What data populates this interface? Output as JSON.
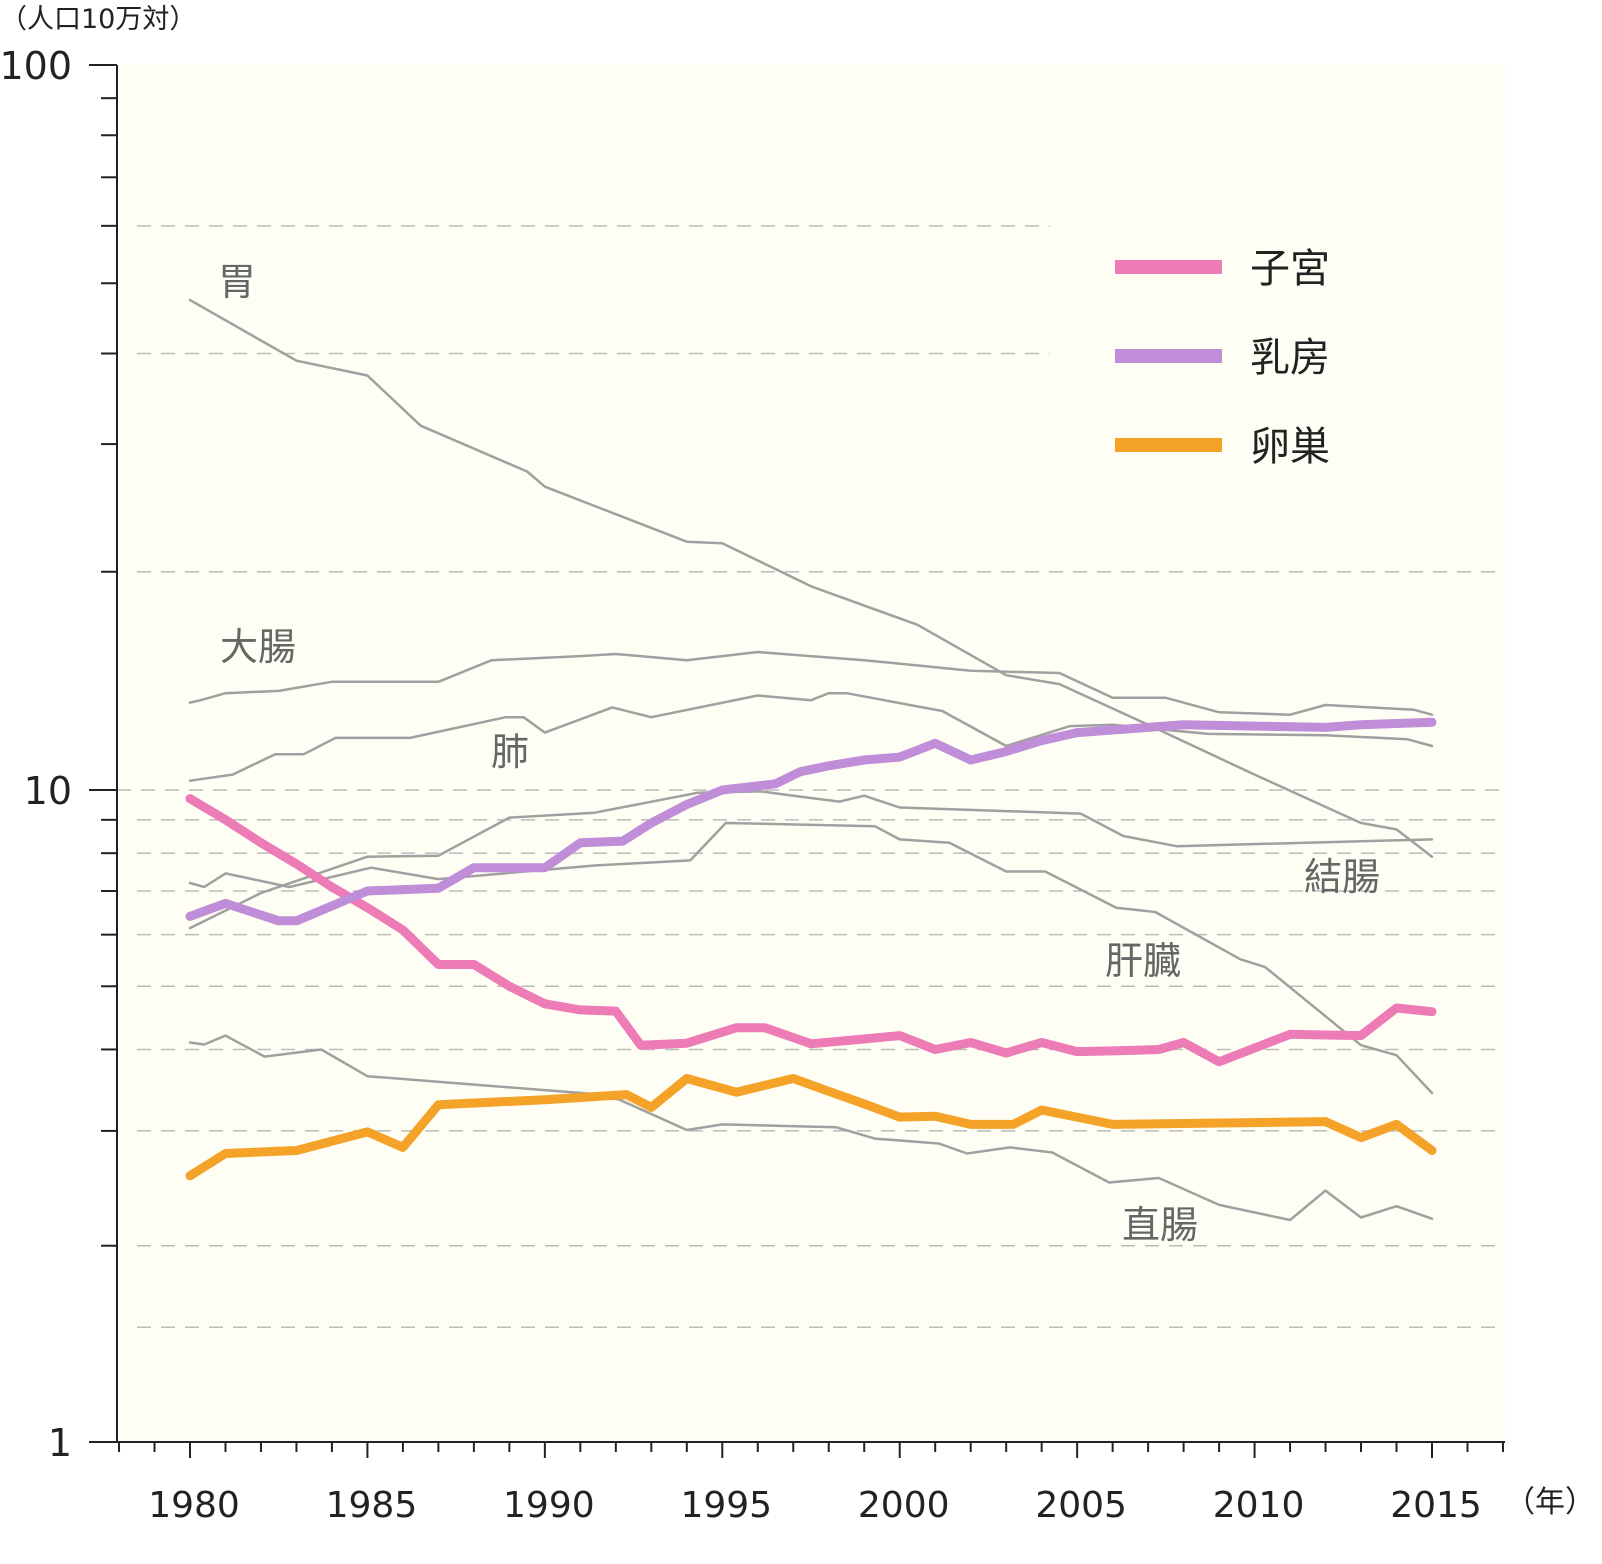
{
  "chart_data": {
    "type": "line",
    "y_scale": "log",
    "ylim": [
      1,
      100
    ],
    "xlim": [
      1978,
      2019
    ],
    "y_unit_label": "（人口10万対）",
    "x_unit_label": "（年）",
    "y_tick_labels": [
      "100",
      "10",
      "1"
    ],
    "y_ticks": [
      100,
      10,
      1
    ],
    "x_tick_labels": [
      "1980",
      "1985",
      "1990",
      "1995",
      "2000",
      "2005",
      "2010",
      "2015"
    ],
    "x_ticks": [
      1980,
      1985,
      1990,
      1995,
      2000,
      2005,
      2010,
      2015
    ],
    "grid": true,
    "grid_values": [
      1.5,
      2,
      3,
      4,
      5,
      6,
      7,
      8,
      9,
      20,
      40,
      60
    ],
    "background": "#fffef5",
    "legend": {
      "placement": "top-right",
      "entries": [
        "子宮",
        "乳房",
        "卵巣"
      ]
    },
    "series": [
      {
        "name": "子宮",
        "color": "#ec7bb6",
        "highlight": true,
        "points": [
          [
            1980,
            9.7
          ],
          [
            1981,
            9.0
          ],
          [
            1982,
            8.3
          ],
          [
            1983,
            7.7
          ],
          [
            1984,
            7.1
          ],
          [
            1985,
            6.6
          ],
          [
            1986,
            6.1
          ],
          [
            1987,
            5.4
          ],
          [
            1988,
            5.4
          ],
          [
            1989,
            5.0
          ],
          [
            1990,
            4.7
          ],
          [
            1991,
            4.6
          ],
          [
            1992,
            4.58
          ],
          [
            1992.7,
            4.06
          ],
          [
            1994,
            4.09
          ],
          [
            1995.4,
            4.32
          ],
          [
            1996.2,
            4.32
          ],
          [
            1997.5,
            4.08
          ],
          [
            1999,
            4.15
          ],
          [
            2000,
            4.2
          ],
          [
            2001,
            4.0
          ],
          [
            2002,
            4.1
          ],
          [
            2003,
            3.95
          ],
          [
            2004,
            4.1
          ],
          [
            2005,
            3.97
          ],
          [
            2006,
            3.98
          ],
          [
            2007.3,
            4.0
          ],
          [
            2008,
            4.1
          ],
          [
            2009,
            3.83
          ],
          [
            2011,
            4.22
          ],
          [
            2012,
            4.21
          ],
          [
            2013,
            4.2
          ],
          [
            2014,
            4.63
          ],
          [
            2015,
            4.57
          ]
        ]
      },
      {
        "name": "乳房",
        "color": "#c08ed8",
        "highlight": true,
        "points": [
          [
            1980,
            6.4
          ],
          [
            1981,
            6.7
          ],
          [
            1982.5,
            6.3
          ],
          [
            1983,
            6.3
          ],
          [
            1985,
            7.0
          ],
          [
            1987,
            7.07
          ],
          [
            1988,
            7.6
          ],
          [
            1990,
            7.6
          ],
          [
            1991,
            8.3
          ],
          [
            1992.2,
            8.35
          ],
          [
            1993,
            8.9
          ],
          [
            1994,
            9.5
          ],
          [
            1995,
            10.0
          ],
          [
            1996.5,
            10.2
          ],
          [
            1997.2,
            10.6
          ],
          [
            1998,
            10.8
          ],
          [
            1999,
            11.0
          ],
          [
            2000,
            11.1
          ],
          [
            2001,
            11.6
          ],
          [
            2002,
            11.0
          ],
          [
            2003,
            11.3
          ],
          [
            2004,
            11.7
          ],
          [
            2005,
            12.0
          ],
          [
            2007,
            12.2
          ],
          [
            2008,
            12.3
          ],
          [
            2010,
            12.25
          ],
          [
            2012,
            12.2
          ],
          [
            2013,
            12.3
          ],
          [
            2014,
            12.35
          ],
          [
            2015,
            12.4
          ]
        ]
      },
      {
        "name": "卵巣",
        "color": "#f4a228",
        "highlight": true,
        "points": [
          [
            1980,
            2.56
          ],
          [
            1981,
            2.77
          ],
          [
            1983,
            2.8
          ],
          [
            1985,
            2.99
          ],
          [
            1986,
            2.83
          ],
          [
            1987,
            3.29
          ],
          [
            1990,
            3.35
          ],
          [
            1992.3,
            3.41
          ],
          [
            1993,
            3.26
          ],
          [
            1994,
            3.61
          ],
          [
            1995.4,
            3.44
          ],
          [
            1997,
            3.61
          ],
          [
            1998,
            3.45
          ],
          [
            1999,
            3.3
          ],
          [
            2000,
            3.15
          ],
          [
            2001,
            3.16
          ],
          [
            2002,
            3.07
          ],
          [
            2003.2,
            3.07
          ],
          [
            2004,
            3.23
          ],
          [
            2006,
            3.07
          ],
          [
            2012,
            3.1
          ],
          [
            2013,
            2.93
          ],
          [
            2014,
            3.07
          ],
          [
            2015,
            2.8
          ]
        ]
      },
      {
        "name": "胃",
        "color": "#a0a0a0",
        "points": [
          [
            1980,
            47.4
          ],
          [
            1983,
            39.1
          ],
          [
            1985,
            37.3
          ],
          [
            1986.5,
            31.8
          ],
          [
            1989.5,
            27.5
          ],
          [
            1990,
            26.2
          ],
          [
            1994,
            22.0
          ],
          [
            1995,
            21.9
          ],
          [
            1997.5,
            19.1
          ],
          [
            2000.5,
            16.9
          ],
          [
            2003,
            14.4
          ],
          [
            2004.5,
            14.0
          ],
          [
            2007,
            12.3
          ],
          [
            2010,
            10.5
          ],
          [
            2013,
            8.9
          ],
          [
            2014,
            8.7
          ],
          [
            2015,
            7.9
          ]
        ]
      },
      {
        "name": "大腸",
        "color": "#a0a0a0",
        "points": [
          [
            1980,
            13.2
          ],
          [
            1980.3,
            13.3
          ],
          [
            1981,
            13.6
          ],
          [
            1982.5,
            13.7
          ],
          [
            1984,
            14.1
          ],
          [
            1987,
            14.1
          ],
          [
            1988.5,
            15.1
          ],
          [
            1991,
            15.3
          ],
          [
            1992,
            15.4
          ],
          [
            1994,
            15.1
          ],
          [
            1996,
            15.5
          ],
          [
            1999,
            15.1
          ],
          [
            2002,
            14.6
          ],
          [
            2004.5,
            14.5
          ],
          [
            2006,
            13.4
          ],
          [
            2007.5,
            13.4
          ],
          [
            2009,
            12.8
          ],
          [
            2011,
            12.7
          ],
          [
            2012,
            13.1
          ],
          [
            2014.5,
            12.9
          ],
          [
            2015,
            12.7
          ]
        ]
      },
      {
        "name": "肺",
        "color": "#a0a0a0",
        "points": [
          [
            1980,
            10.3
          ],
          [
            1981.2,
            10.5
          ],
          [
            1982.4,
            11.2
          ],
          [
            1983.2,
            11.2
          ],
          [
            1984.1,
            11.8
          ],
          [
            1986.2,
            11.8
          ],
          [
            1988.9,
            12.6
          ],
          [
            1989.4,
            12.6
          ],
          [
            1990,
            12.0
          ],
          [
            1991.9,
            13.0
          ],
          [
            1993,
            12.6
          ],
          [
            1996,
            13.5
          ],
          [
            1997.5,
            13.3
          ],
          [
            1998,
            13.6
          ],
          [
            1998.5,
            13.6
          ],
          [
            2001.2,
            12.85
          ],
          [
            2003,
            11.5
          ],
          [
            2004.8,
            12.25
          ],
          [
            2006,
            12.3
          ],
          [
            2008.7,
            11.95
          ],
          [
            2012,
            11.9
          ],
          [
            2014.3,
            11.75
          ],
          [
            2015,
            11.5
          ]
        ]
      },
      {
        "name": "結腸",
        "color": "#a0a0a0",
        "points": [
          [
            1980,
            6.14
          ],
          [
            1982,
            6.95
          ],
          [
            1985,
            7.9
          ],
          [
            1987,
            7.93
          ],
          [
            1989,
            9.07
          ],
          [
            1991.4,
            9.23
          ],
          [
            1994.3,
            9.9
          ],
          [
            1996.1,
            9.95
          ],
          [
            1997,
            9.8
          ],
          [
            1998.3,
            9.6
          ],
          [
            1999,
            9.8
          ],
          [
            2000,
            9.4
          ],
          [
            2005.1,
            9.2
          ],
          [
            2006.3,
            8.5
          ],
          [
            2007.8,
            8.2
          ],
          [
            2015,
            8.4
          ]
        ]
      },
      {
        "name": "肝臓",
        "color": "#a0a0a0",
        "points": [
          [
            1980,
            7.2
          ],
          [
            1980.4,
            7.1
          ],
          [
            1981,
            7.45
          ],
          [
            1982.8,
            7.1
          ],
          [
            1985.1,
            7.6
          ],
          [
            1987,
            7.3
          ],
          [
            1991.4,
            7.66
          ],
          [
            1994.1,
            7.8
          ],
          [
            1995.1,
            8.9
          ],
          [
            1999.3,
            8.8
          ],
          [
            2000,
            8.4
          ],
          [
            2001.4,
            8.3
          ],
          [
            2003,
            7.5
          ],
          [
            2004.1,
            7.5
          ],
          [
            2006.1,
            6.6
          ],
          [
            2007.2,
            6.5
          ],
          [
            2009.6,
            5.5
          ],
          [
            2010.3,
            5.35
          ],
          [
            2013,
            4.06
          ],
          [
            2014,
            3.92
          ],
          [
            2015,
            3.43
          ]
        ]
      },
      {
        "name": "直腸",
        "color": "#a0a0a0",
        "points": [
          [
            1980,
            4.1
          ],
          [
            1980.4,
            4.07
          ],
          [
            1981,
            4.2
          ],
          [
            1982.1,
            3.9
          ],
          [
            1983.7,
            4.0
          ],
          [
            1985,
            3.64
          ],
          [
            1991.3,
            3.42
          ],
          [
            1992.1,
            3.35
          ],
          [
            1994,
            3.01
          ],
          [
            1995,
            3.07
          ],
          [
            1998.2,
            3.04
          ],
          [
            1999.3,
            2.92
          ],
          [
            2001.1,
            2.87
          ],
          [
            2001.9,
            2.77
          ],
          [
            2003.1,
            2.83
          ],
          [
            2004.3,
            2.78
          ],
          [
            2005.9,
            2.5
          ],
          [
            2007.3,
            2.54
          ],
          [
            2009,
            2.31
          ],
          [
            2011,
            2.19
          ],
          [
            2012,
            2.43
          ],
          [
            2013,
            2.21
          ],
          [
            2014,
            2.3
          ],
          [
            2015,
            2.2
          ]
        ]
      }
    ]
  }
}
